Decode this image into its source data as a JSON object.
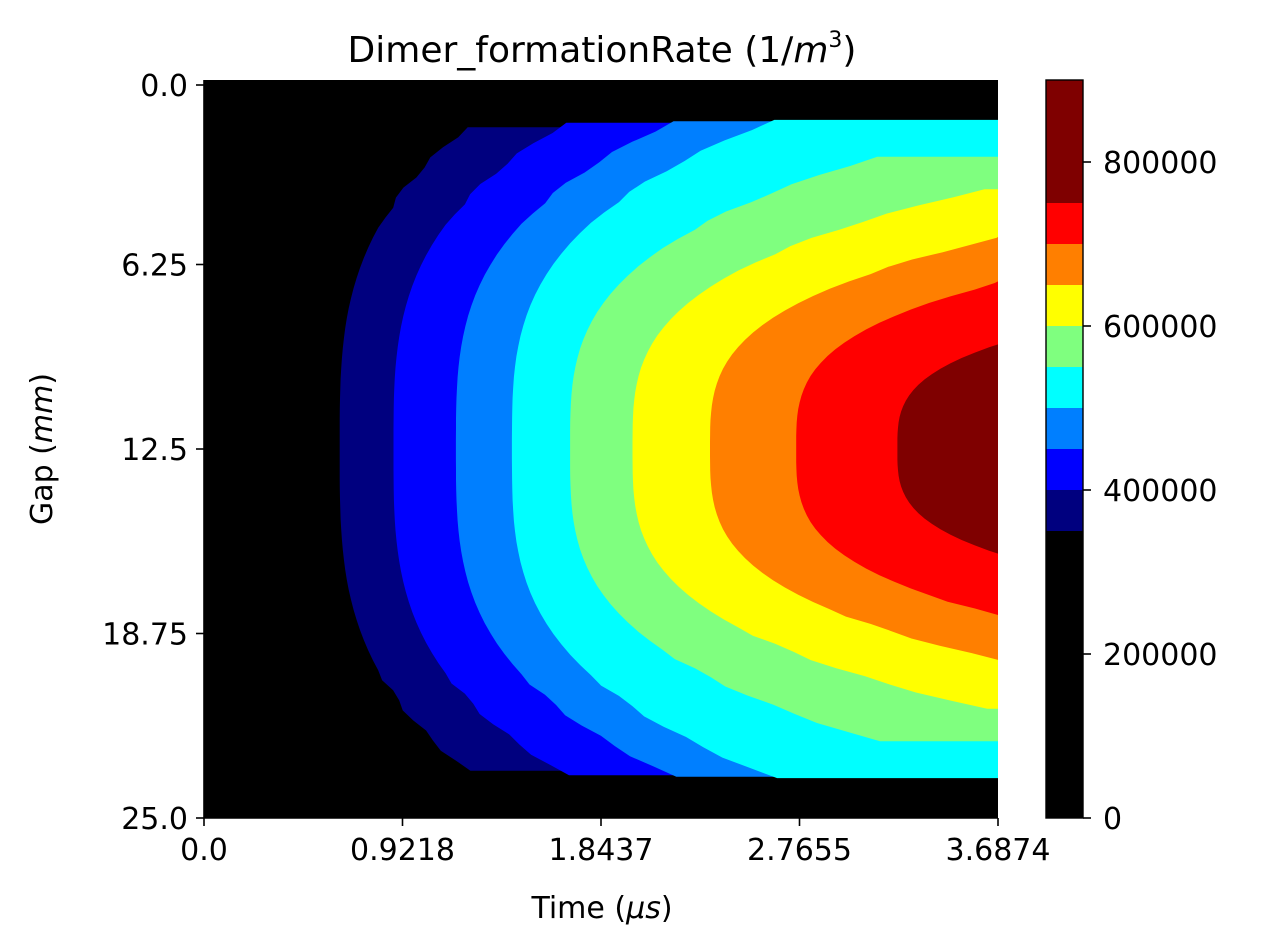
{
  "chart_data": {
    "type": "heatmap",
    "subtype": "filled-contour",
    "title": "Dimer_formationRate (1/m³)",
    "title_parts": {
      "prefix": "Dimer_formationRate (1/",
      "unit_base": "m",
      "unit_exp": "3",
      "suffix": ")"
    },
    "xlabel": "Time (μs)",
    "xlabel_parts": {
      "prefix": "Time (",
      "unit": "μs",
      "suffix": ")"
    },
    "ylabel": "Gap (mm)",
    "ylabel_parts": {
      "prefix": "Gap (",
      "unit": "mm",
      "suffix": ")"
    },
    "x_ticks": [
      "0.0",
      "0.9218",
      "1.8437",
      "2.7655",
      "3.6874"
    ],
    "y_ticks": [
      "0.0",
      "6.25",
      "12.5",
      "18.75",
      "25.0"
    ],
    "xlim": [
      0.0,
      3.6874
    ],
    "ylim": [
      0.0,
      25.0
    ],
    "y_inverted": true,
    "colormap": "jet",
    "colorbar": {
      "ticks": [
        "0",
        "200000",
        "400000",
        "600000",
        "800000"
      ],
      "tick_values": [
        0,
        200000,
        400000,
        600000,
        800000
      ],
      "range": [
        0,
        900000
      ],
      "levels": [
        {
          "from": 0,
          "to": 350000,
          "color": "#000000"
        },
        {
          "from": 350000,
          "to": 400000,
          "color": "#00007f"
        },
        {
          "from": 400000,
          "to": 450000,
          "color": "#0000ff"
        },
        {
          "from": 450000,
          "to": 500000,
          "color": "#007fff"
        },
        {
          "from": 500000,
          "to": 550000,
          "color": "#00ffff"
        },
        {
          "from": 550000,
          "to": 600000,
          "color": "#7fff7f"
        },
        {
          "from": 600000,
          "to": 650000,
          "color": "#ffff00"
        },
        {
          "from": 650000,
          "to": 700000,
          "color": "#ff7f00"
        },
        {
          "from": 700000,
          "to": 750000,
          "color": "#ff0000"
        },
        {
          "from": 750000,
          "to": 900000,
          "color": "#7f0000"
        }
      ]
    },
    "contour_boundaries": [
      {
        "level": 350000,
        "color": "#00007f",
        "time_at_center": 0.63,
        "gap_edge": 1.6
      },
      {
        "level": 400000,
        "color": "#0000ff",
        "time_at_center": 0.88,
        "gap_edge": 1.45
      },
      {
        "level": 450000,
        "color": "#007fff",
        "time_at_center": 1.17,
        "gap_edge": 1.4
      },
      {
        "level": 500000,
        "color": "#00ffff",
        "time_at_center": 1.43,
        "gap_edge": 1.35
      },
      {
        "level": 550000,
        "color": "#7fff7f",
        "time_at_center": 1.7,
        "gap_edge": 2.6
      },
      {
        "level": 600000,
        "color": "#ffff00",
        "time_at_center": 1.99,
        "gap_edge": 3.7
      },
      {
        "level": 650000,
        "color": "#ff7f00",
        "time_at_center": 2.35,
        "gap_edge": 4.6
      },
      {
        "level": 700000,
        "color": "#ff0000",
        "time_at_center": 2.75,
        "gap_edge": 5.3
      },
      {
        "level": 750000,
        "color": "#7f0000",
        "time_at_center": 3.22,
        "gap_edge": 6.7
      }
    ]
  }
}
